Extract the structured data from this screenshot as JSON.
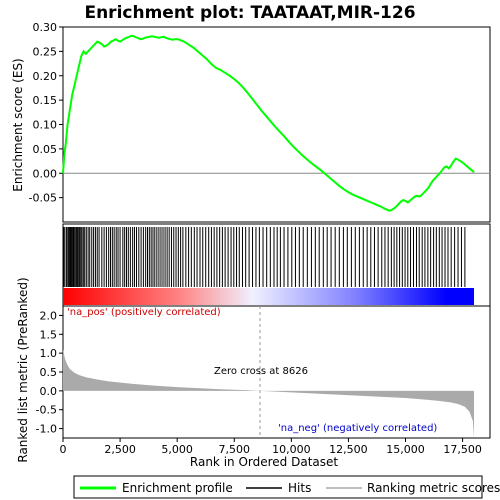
{
  "chart_data": {
    "type": "line",
    "title": "Enrichment plot: TAATAAT,MIR-126",
    "top_panel": {
      "ylabel": "Enrichment score (ES)",
      "ylim": [
        -0.1,
        0.3
      ],
      "yticks": [
        "0.30",
        "0.25",
        "0.20",
        "0.15",
        "0.10",
        "0.05",
        "0.00",
        "-0.05"
      ],
      "ytick_values": [
        0.3,
        0.25,
        0.2,
        0.15,
        0.1,
        0.05,
        0.0,
        -0.05
      ],
      "series": [
        {
          "name": "Enrichment profile",
          "color": "#00ff00",
          "x": [
            0,
            60,
            120,
            200,
            300,
            400,
            500,
            600,
            700,
            800,
            900,
            1000,
            1100,
            1200,
            1300,
            1400,
            1500,
            1600,
            1700,
            1800,
            1900,
            2000,
            2100,
            2200,
            2300,
            2400,
            2500,
            2600,
            2700,
            2800,
            2900,
            3000,
            3100,
            3200,
            3300,
            3400,
            3500,
            3600,
            3700,
            3800,
            3900,
            4000,
            4100,
            4200,
            4300,
            4400,
            4500,
            4600,
            4700,
            4800,
            4900,
            5000,
            5100,
            5200,
            5300,
            5400,
            5500,
            5700,
            5900,
            6100,
            6300,
            6500,
            6700,
            6900,
            7100,
            7300,
            7500,
            7700,
            7900,
            8100,
            8300,
            8500,
            8700,
            8900,
            9100,
            9300,
            9500,
            9700,
            9900,
            10100,
            10300,
            10500,
            10700,
            10900,
            11100,
            11300,
            11500,
            11700,
            11900,
            12100,
            12300,
            12500,
            12700,
            12900,
            13100,
            13300,
            13500,
            13700,
            13900,
            14100,
            14200,
            14300,
            14400,
            14500,
            14600,
            14700,
            14800,
            14900,
            15000,
            15100,
            15200,
            15300,
            15400,
            15500,
            15600,
            15700,
            15800,
            15900,
            16000,
            16100,
            16200,
            16300,
            16400,
            16500,
            16600,
            16700,
            16800,
            16900,
            17000,
            17100,
            17200,
            17300,
            17400,
            17500,
            17600,
            17700,
            17800,
            17900,
            18000
          ],
          "y": [
            0.0,
            0.04,
            0.06,
            0.1,
            0.13,
            0.16,
            0.18,
            0.2,
            0.22,
            0.24,
            0.25,
            0.245,
            0.25,
            0.255,
            0.26,
            0.265,
            0.27,
            0.268,
            0.265,
            0.26,
            0.262,
            0.265,
            0.27,
            0.272,
            0.275,
            0.272,
            0.27,
            0.273,
            0.276,
            0.278,
            0.28,
            0.282,
            0.281,
            0.279,
            0.277,
            0.275,
            0.276,
            0.278,
            0.279,
            0.28,
            0.281,
            0.28,
            0.279,
            0.278,
            0.279,
            0.28,
            0.278,
            0.276,
            0.275,
            0.274,
            0.275,
            0.275,
            0.274,
            0.272,
            0.27,
            0.267,
            0.264,
            0.258,
            0.25,
            0.242,
            0.234,
            0.224,
            0.216,
            0.212,
            0.206,
            0.2,
            0.193,
            0.185,
            0.175,
            0.164,
            0.152,
            0.14,
            0.128,
            0.117,
            0.106,
            0.095,
            0.085,
            0.075,
            0.064,
            0.054,
            0.045,
            0.036,
            0.028,
            0.02,
            0.013,
            0.006,
            -0.002,
            -0.01,
            -0.018,
            -0.026,
            -0.033,
            -0.039,
            -0.044,
            -0.048,
            -0.052,
            -0.056,
            -0.06,
            -0.064,
            -0.068,
            -0.073,
            -0.075,
            -0.077,
            -0.075,
            -0.072,
            -0.068,
            -0.063,
            -0.058,
            -0.055,
            -0.057,
            -0.06,
            -0.056,
            -0.052,
            -0.048,
            -0.046,
            -0.048,
            -0.045,
            -0.04,
            -0.035,
            -0.03,
            -0.022,
            -0.015,
            -0.01,
            -0.005,
            0.0,
            0.006,
            0.012,
            0.014,
            0.01,
            0.016,
            0.024,
            0.03,
            0.028,
            0.025,
            0.022,
            0.018,
            0.014,
            0.01,
            0.006,
            0.002
          ]
        }
      ]
    },
    "hits_panel": {
      "hit_positions": [
        30,
        80,
        150,
        210,
        250,
        290,
        330,
        370,
        420,
        460,
        510,
        560,
        600,
        640,
        690,
        730,
        780,
        830,
        890,
        950,
        1020,
        1100,
        1170,
        1260,
        1340,
        1420,
        1500,
        1580,
        1700,
        1800,
        1900,
        2000,
        2080,
        2160,
        2240,
        2330,
        2410,
        2500,
        2620,
        2700,
        2780,
        2860,
        2950,
        3050,
        3130,
        3220,
        3320,
        3420,
        3520,
        3620,
        3700,
        3780,
        3860,
        3940,
        4020,
        4110,
        4200,
        4290,
        4380,
        4470,
        4560,
        4650,
        4750,
        4850,
        4950,
        5050,
        5150,
        5250,
        5380,
        5500,
        5620,
        5750,
        5870,
        6000,
        6120,
        6250,
        6380,
        6500,
        6620,
        6740,
        6860,
        6980,
        7100,
        7230,
        7360,
        7480,
        7600,
        7720,
        7860,
        8000,
        8150,
        8300,
        8450,
        8600,
        8760,
        8920,
        9080,
        9240,
        9380,
        9520,
        9680,
        9850,
        10020,
        10180,
        10350,
        10520,
        10700,
        10880,
        11050,
        11220,
        11400,
        11570,
        11740,
        11920,
        12100,
        12280,
        12450,
        12630,
        12800,
        12980,
        13150,
        13320,
        13480,
        13640,
        13800,
        13960,
        14100,
        14240,
        14380,
        14500,
        14620,
        14740,
        14860,
        14980,
        15100,
        15220,
        15350,
        15480,
        15600,
        15730,
        15850,
        15980,
        16100,
        16230,
        16350,
        16480,
        16600,
        16730,
        16860,
        17000,
        17150,
        17300,
        17450,
        17600
      ],
      "bar_labels": [
        "'na_pos' (positively correlated)",
        "'na_neg' (negatively correlated)"
      ],
      "pos_color": "#ff0000",
      "neg_color": "#0000ff"
    },
    "bottom_panel": {
      "ylabel": "Ranked list metric (PreRanked)",
      "xlabel": "Rank in Ordered Dataset",
      "ylim": [
        -1.25,
        2.25
      ],
      "yticks": [
        "2.0",
        "1.5",
        "1.0",
        "0.5",
        "0.0",
        "-0.5",
        "-1.0"
      ],
      "ytick_values": [
        2.0,
        1.5,
        1.0,
        0.5,
        0.0,
        -0.5,
        -1.0
      ],
      "xlim": [
        0,
        18700
      ],
      "xticks": [
        "0",
        "2,500",
        "5,000",
        "7,500",
        "10,000",
        "12,500",
        "15,000",
        "17,500"
      ],
      "xtick_values": [
        0,
        2500,
        5000,
        7500,
        10000,
        12500,
        15000,
        17500
      ],
      "metric_x": [
        0,
        50,
        100,
        200,
        300,
        500,
        700,
        1000,
        1500,
        2000,
        3000,
        4000,
        5000,
        6000,
        7000,
        8000,
        8626,
        9000,
        10000,
        11000,
        12000,
        13000,
        14000,
        15000,
        16000,
        16500,
        17000,
        17300,
        17600,
        17800,
        17950,
        18000
      ],
      "metric_y": [
        1.1,
        0.95,
        0.82,
        0.68,
        0.58,
        0.48,
        0.42,
        0.36,
        0.3,
        0.25,
        0.19,
        0.14,
        0.1,
        0.07,
        0.04,
        0.02,
        0.0,
        -0.01,
        -0.04,
        -0.07,
        -0.1,
        -0.13,
        -0.16,
        -0.19,
        -0.24,
        -0.27,
        -0.31,
        -0.35,
        -0.42,
        -0.55,
        -0.8,
        -1.25
      ],
      "zero_cross": 8626,
      "zero_cross_label": "Zero cross at 8626",
      "fill_color": "#aaaaaa"
    },
    "legend": {
      "placement": "bottom",
      "entries": [
        {
          "label": "Enrichment profile",
          "color": "#00ff00"
        },
        {
          "label": "Hits",
          "color": "#000000"
        },
        {
          "label": "Ranking metric scores",
          "color": "#aaaaaa"
        }
      ]
    }
  }
}
